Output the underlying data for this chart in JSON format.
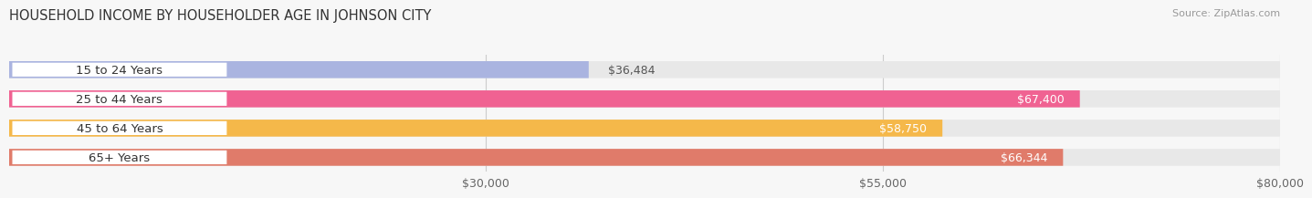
{
  "title": "HOUSEHOLD INCOME BY HOUSEHOLDER AGE IN JOHNSON CITY",
  "source": "Source: ZipAtlas.com",
  "categories": [
    "15 to 24 Years",
    "25 to 44 Years",
    "45 to 64 Years",
    "65+ Years"
  ],
  "values": [
    36484,
    67400,
    58750,
    66344
  ],
  "bar_colors": [
    "#aab4e0",
    "#f06292",
    "#f5b84a",
    "#e07b6a"
  ],
  "xmin": 0,
  "xmax": 80000,
  "xticks": [
    30000,
    55000,
    80000
  ],
  "xtick_labels": [
    "$30,000",
    "$55,000",
    "$80,000"
  ],
  "bar_height": 0.58,
  "title_fontsize": 10.5,
  "source_fontsize": 8,
  "label_fontsize": 9,
  "tick_fontsize": 9,
  "category_fontsize": 9.5,
  "fig_bg_color": "#f7f7f7",
  "bg_bar_color": "#e8e8e8",
  "white_label_bg": "#ffffff",
  "grid_color": "#cccccc",
  "value_inside_color": "#ffffff",
  "value_outside_color": "#555555",
  "inside_threshold": 55000
}
